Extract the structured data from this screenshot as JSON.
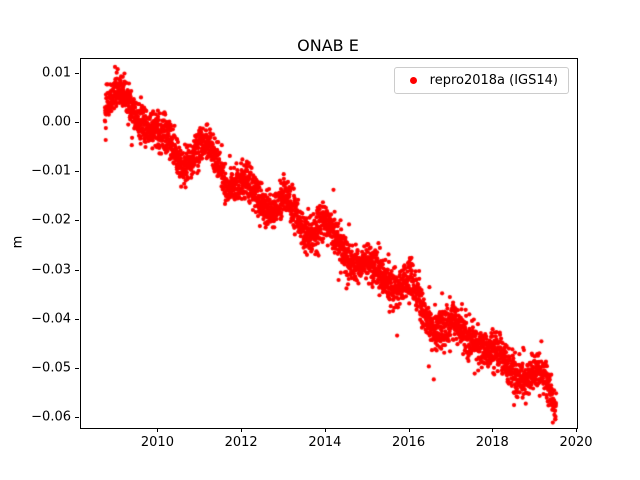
{
  "chart_data": {
    "type": "scatter",
    "title": "ONAB E",
    "ylabel": "m",
    "legend": {
      "label": "repro2018a (IGS14)",
      "position": "upper right"
    },
    "marker_color": "#ff0000",
    "xlim": [
      2008.15,
      2020.0
    ],
    "ylim": [
      -0.062,
      0.013
    ],
    "xticks": {
      "values": [
        2010,
        2012,
        2014,
        2016,
        2018,
        2020
      ],
      "labels": [
        "2010",
        "2012",
        "2014",
        "2016",
        "2018",
        "2020"
      ]
    },
    "yticks": {
      "values": [
        0.01,
        0.0,
        -0.01,
        -0.02,
        -0.03,
        -0.04,
        -0.05,
        -0.06
      ],
      "labels": [
        "0.01",
        "0.00",
        "−0.01",
        "−0.02",
        "−0.03",
        "−0.04",
        "−0.05",
        "−0.06"
      ]
    },
    "grid": false,
    "x_range_of_data": [
      2008.72,
      2019.5
    ],
    "trend_anchors": [
      [
        2008.72,
        0.003
      ],
      [
        2008.85,
        0.005
      ],
      [
        2009.0,
        0.006
      ],
      [
        2009.15,
        0.005
      ],
      [
        2009.5,
        0.002
      ],
      [
        2009.8,
        -0.001
      ],
      [
        2010.0,
        -0.003
      ],
      [
        2010.3,
        -0.004
      ],
      [
        2010.6,
        -0.008
      ],
      [
        2010.9,
        -0.007
      ],
      [
        2011.1,
        -0.005
      ],
      [
        2011.4,
        -0.007
      ],
      [
        2011.6,
        -0.012
      ],
      [
        2011.9,
        -0.013
      ],
      [
        2012.2,
        -0.013
      ],
      [
        2012.5,
        -0.016
      ],
      [
        2012.8,
        -0.017
      ],
      [
        2013.0,
        -0.016
      ],
      [
        2013.3,
        -0.019
      ],
      [
        2013.6,
        -0.022
      ],
      [
        2013.9,
        -0.021
      ],
      [
        2014.2,
        -0.023
      ],
      [
        2014.5,
        -0.026
      ],
      [
        2014.8,
        -0.029
      ],
      [
        2015.1,
        -0.03
      ],
      [
        2015.4,
        -0.031
      ],
      [
        2015.7,
        -0.033
      ],
      [
        2016.0,
        -0.033
      ],
      [
        2016.2,
        -0.036
      ],
      [
        2016.5,
        -0.04
      ],
      [
        2016.8,
        -0.042
      ],
      [
        2017.0,
        -0.041
      ],
      [
        2017.3,
        -0.043
      ],
      [
        2017.6,
        -0.044
      ],
      [
        2017.9,
        -0.047
      ],
      [
        2018.2,
        -0.048
      ],
      [
        2018.5,
        -0.05
      ],
      [
        2018.8,
        -0.052
      ],
      [
        2019.0,
        -0.051
      ],
      [
        2019.2,
        -0.052
      ],
      [
        2019.4,
        -0.055
      ],
      [
        2019.5,
        -0.057
      ]
    ],
    "n_points": 3200,
    "noise_std": 0.0019,
    "seasonal_amp": 0.0013,
    "marker_radius": 2.1,
    "seed": 42
  }
}
